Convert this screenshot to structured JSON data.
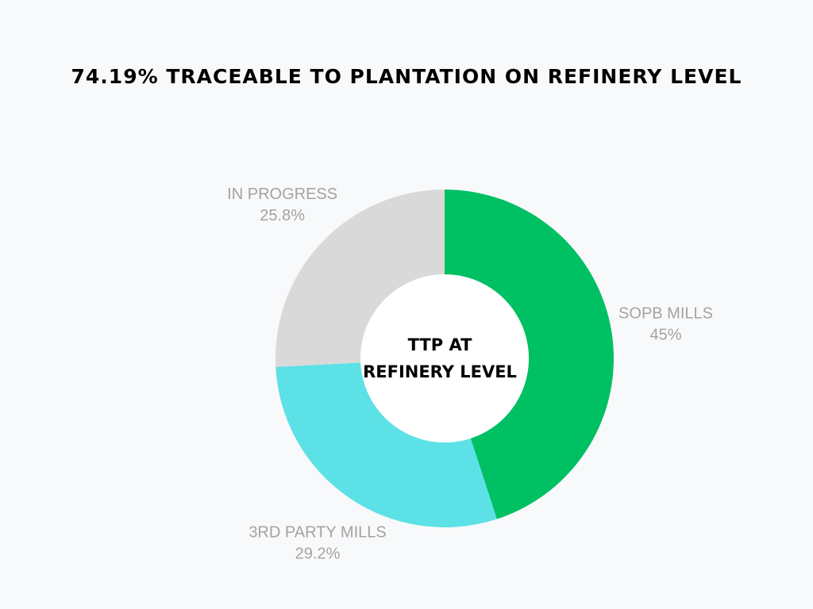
{
  "chart_data": {
    "type": "pie",
    "title": "74.19% TRACEABLE TO PLANTATION ON REFINERY LEVEL",
    "center_label": [
      "TTP AT",
      "REFINERY LEVEL"
    ],
    "slices": [
      {
        "label": "SOPB MILLS",
        "value": 45,
        "value_label": "45%",
        "color": "#00c064"
      },
      {
        "label": "3RD PARTY MILLS",
        "value": 29.2,
        "value_label": "29.2%",
        "color": "#5ce1e6"
      },
      {
        "label": "IN PROGRESS",
        "value": 25.8,
        "value_label": "25.8%",
        "color": "#d9d9d9"
      }
    ],
    "legend": "none",
    "background": "#f8f9fb"
  }
}
